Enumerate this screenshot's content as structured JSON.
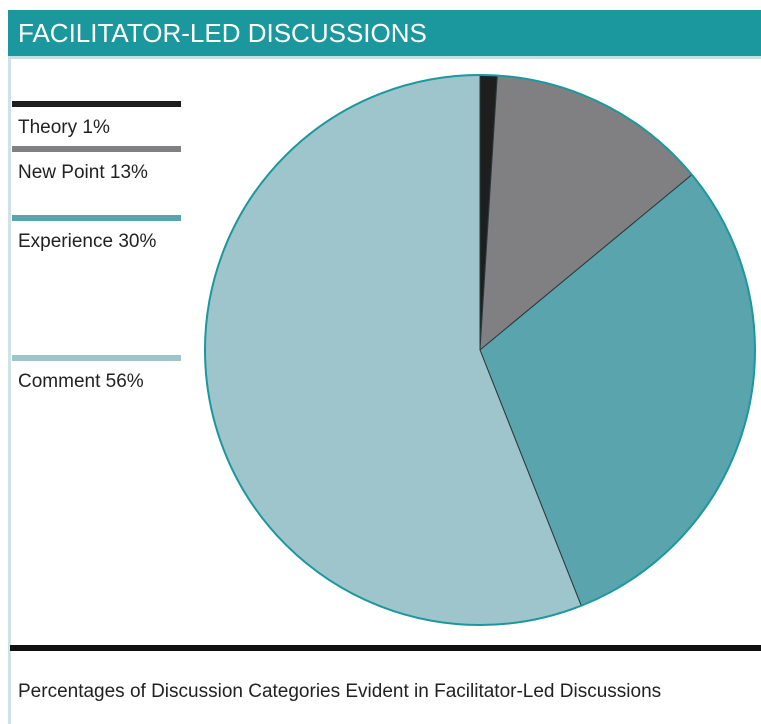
{
  "chart_data": {
    "type": "pie",
    "title": "FACILITATOR-LED DISCUSSIONS",
    "caption": "Percentages of Discussion Categories Evident in Facilitator-Led Discussions",
    "categories": [
      "Theory",
      "New Point",
      "Experience",
      "Comment"
    ],
    "values": [
      1,
      13,
      30,
      56
    ],
    "value_labels": [
      "1%",
      "13%",
      "30%",
      "56%"
    ],
    "colors": [
      "#1e1e1e",
      "#808083",
      "#5aa5ad",
      "#9fc5cc"
    ]
  }
}
